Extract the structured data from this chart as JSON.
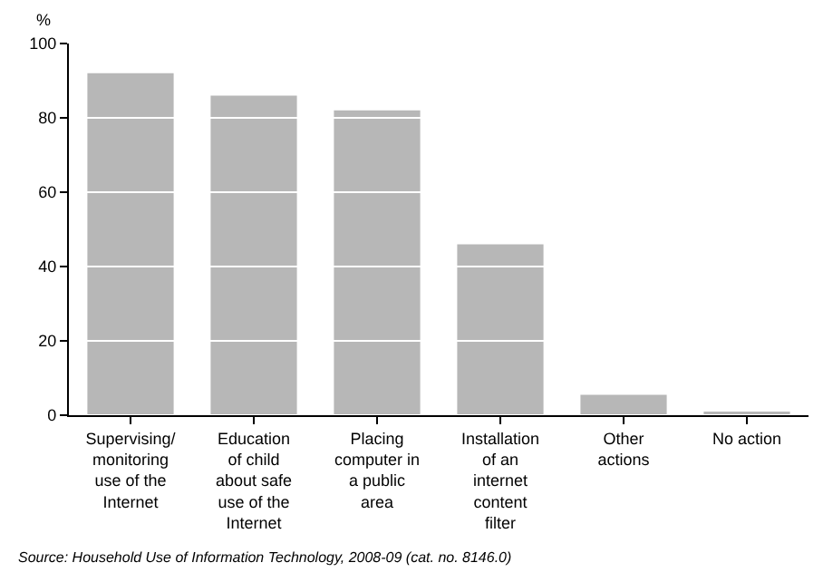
{
  "chart_data": {
    "type": "bar",
    "categories": [
      "Supervising/ monitoring use of the Internet",
      "Education of child about safe use of the Internet",
      "Placing computer in a public area",
      "Installation of an internet content filter",
      "Other actions",
      "No action"
    ],
    "values": [
      92,
      86,
      82,
      46,
      5.5,
      0.5
    ],
    "color": "#b7b7b7",
    "ylabel": "%",
    "ylim": [
      0,
      100
    ],
    "yticks": [
      0,
      20,
      40,
      60,
      80,
      100
    ],
    "grid": "y",
    "annotations": [
      "Source: Household Use of Information Technology, 2008-09 (cat. no. 8146.0)"
    ]
  }
}
